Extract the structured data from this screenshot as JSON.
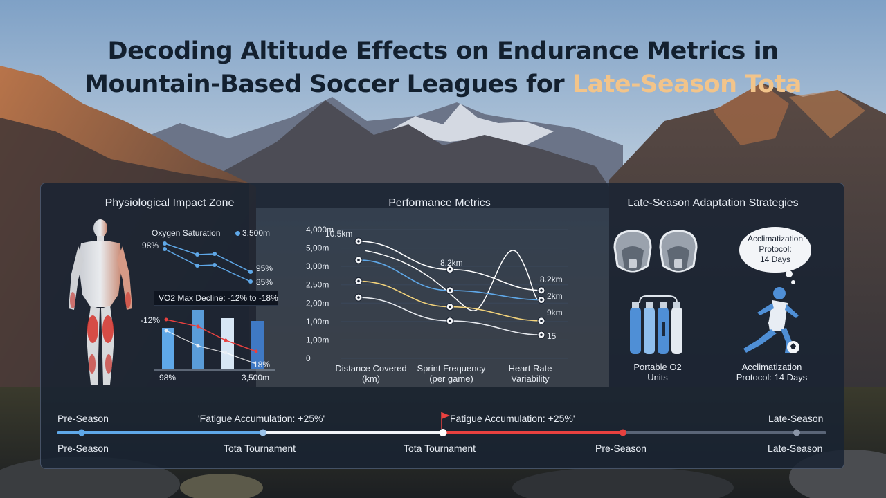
{
  "title": {
    "line1": "Decoding Altitude Effects on Endurance Metrics in",
    "line2_plain": "Mountain-Based Soccer Leagues for ",
    "line2_highlight": "Late-Season Tota"
  },
  "colors": {
    "accent": "#f2c48a",
    "blue": "#5fa8e8",
    "red": "#e8413f",
    "yellow": "#f2d27a",
    "white": "#f1f4f8"
  },
  "physio": {
    "title": "Physiological Impact Zone",
    "oxygen_label": "Oxygen Saturation",
    "oxygen_legend": "3,500m",
    "left_value": "98%",
    "value_95": "95%",
    "value_85": "85%",
    "vo2_label": "VO2 Max Decline: -12% to -18%",
    "bar_left_value": "-12%",
    "bar_right_value": "18%",
    "axis_left": "98%",
    "axis_right": "3,500m"
  },
  "chart_data": {
    "type": "line",
    "title": "Performance Metrics",
    "categories": [
      "Distance Covered (km)",
      "Sprint Frequency (per game)",
      "Heart Rate Variability"
    ],
    "y_tick_labels": [
      "4,000m",
      "5,00m",
      "3,00m",
      "2,50m",
      "2,00m",
      "1,00m",
      "1,00m",
      "0"
    ],
    "series_value_labels": [
      "10.5km",
      "8.2km",
      "8.2km",
      "2km",
      "9km",
      "15"
    ],
    "series": [
      {
        "color": "#ffffff",
        "values": [
          5.0,
          3.8,
          2.9
        ]
      },
      {
        "color": "#5fa8e8",
        "values": [
          4.2,
          2.9,
          2.5
        ]
      },
      {
        "color": "#f2d27a",
        "values": [
          3.3,
          2.2,
          1.6
        ]
      },
      {
        "color": "#e6e9ee",
        "values": [
          2.6,
          1.6,
          1.0
        ]
      }
    ]
  },
  "performance": {
    "title": "Performance Metrics",
    "x_label_1a": "Distance Covered",
    "x_label_1b": "(km)",
    "x_label_2a": "Sprint Frequency",
    "x_label_2b": "(per game)",
    "x_label_3a": "Heart Rate",
    "x_label_3b": "Variability"
  },
  "strategies": {
    "title": "Late-Season Adaptation Strategies",
    "bubble_line1": "Acclimatization",
    "bubble_line2": "Protocol:",
    "bubble_line3": "14 Days",
    "o2_label_1": "Portable O2",
    "o2_label_2": "Units",
    "accl_label_1": "Acclimatization",
    "accl_label_2": "Protocol: 14 Days"
  },
  "timeline": {
    "top_left": "Pre-Season",
    "top_fatigue_1": "'Fatigue Accumulation: +25%'",
    "top_fatigue_2": "Fatigue Accumulation: +25%'",
    "top_right": "Late-Season",
    "bottom": [
      "Pre-Season",
      "Tota Tournament",
      "Tota Tournament",
      "Pre-Season",
      "Late-Season"
    ]
  }
}
